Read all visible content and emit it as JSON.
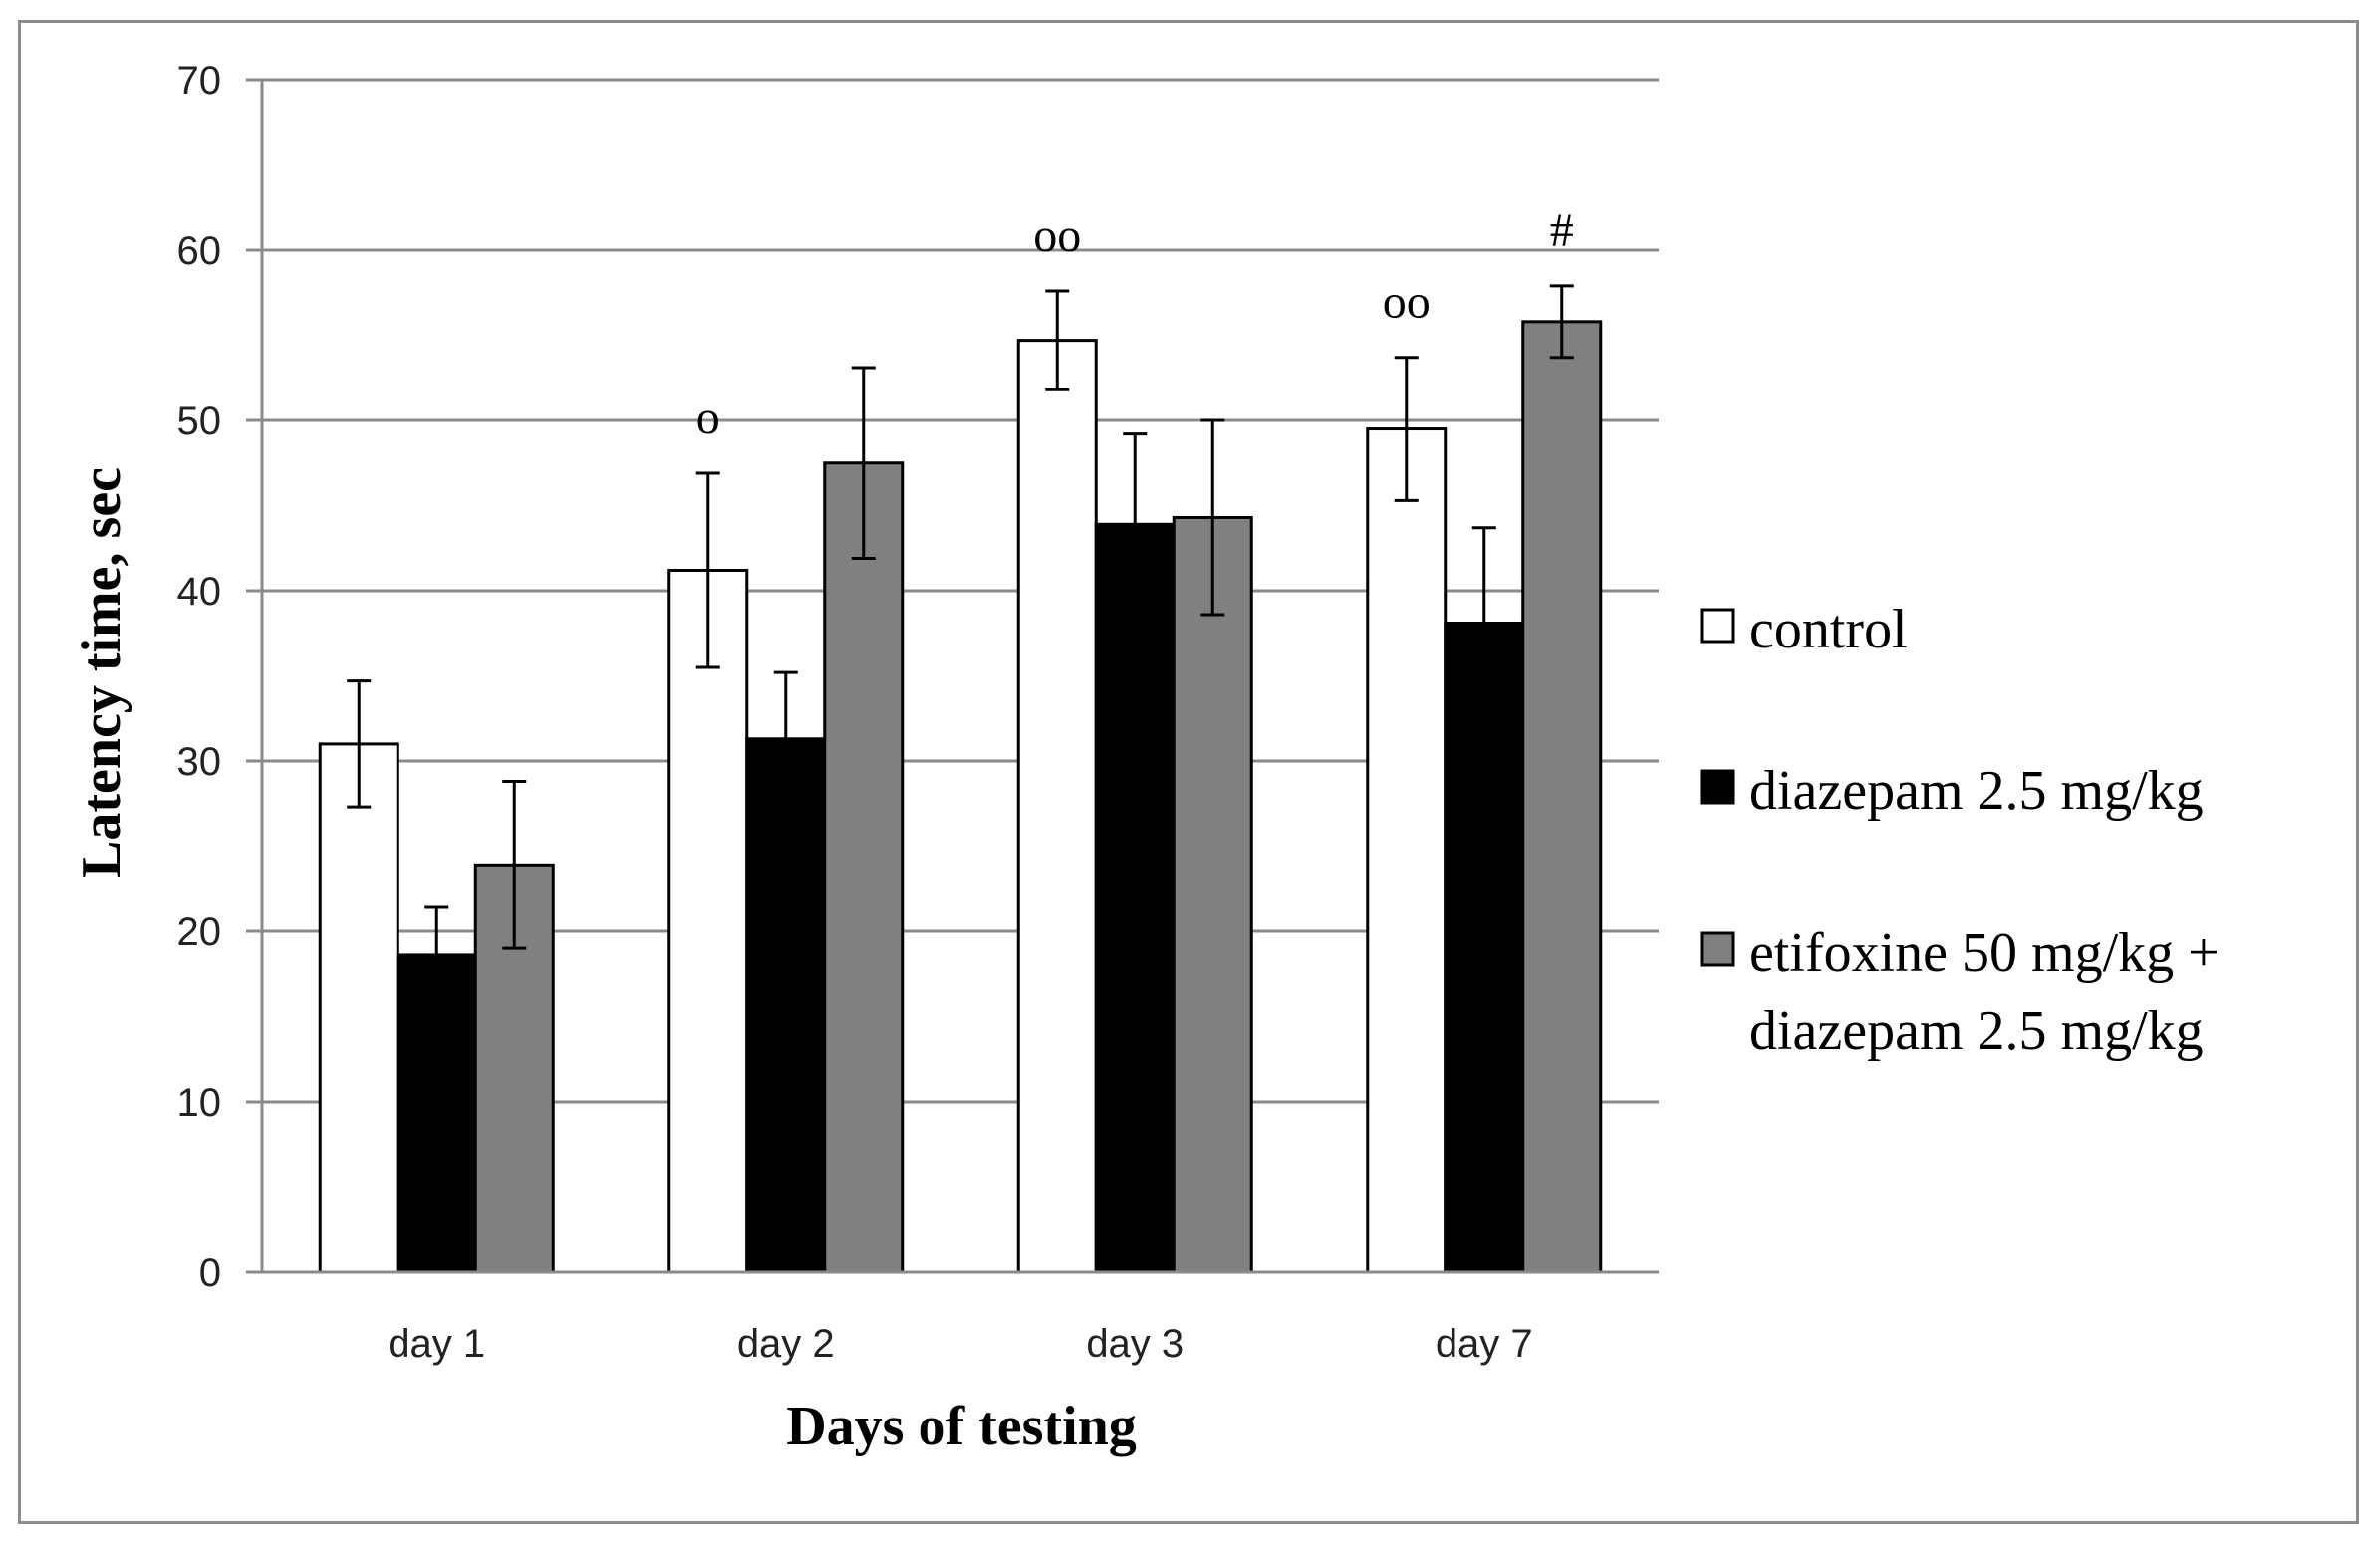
{
  "chart_data": {
    "type": "bar",
    "title": "",
    "xlabel": "Days of testing",
    "ylabel": "Latency time, sec",
    "ylim": [
      0,
      70
    ],
    "yticks": [
      0,
      10,
      20,
      30,
      40,
      50,
      60,
      70
    ],
    "grid": true,
    "legend_position": "right",
    "categories": [
      "day 1",
      "day 2",
      "day 3",
      "day 7"
    ],
    "series": [
      {
        "name": "control",
        "color": "#ffffff",
        "values": [
          31.0,
          41.2,
          54.7,
          49.5
        ],
        "errors": [
          3.7,
          5.7,
          2.9,
          4.2
        ],
        "annotations": [
          "",
          "o",
          "oo",
          "oo"
        ]
      },
      {
        "name": "diazepam 2.5 mg/kg",
        "color": "#000000",
        "values": [
          18.6,
          31.3,
          43.9,
          38.1
        ],
        "errors": [
          2.8,
          3.9,
          5.3,
          5.6
        ],
        "annotations": [
          "",
          "",
          "",
          ""
        ]
      },
      {
        "name": "etifoxine 50 mg/kg + diazepam 2.5 mg/kg",
        "name_lines": [
          "etifoxine 50 mg/kg +",
          "diazepam 2.5 mg/kg"
        ],
        "color": "#808080",
        "values": [
          23.9,
          47.5,
          44.3,
          55.8
        ],
        "errors": [
          4.9,
          5.6,
          5.7,
          2.1
        ],
        "annotations": [
          "",
          "",
          "",
          "#"
        ]
      }
    ]
  }
}
